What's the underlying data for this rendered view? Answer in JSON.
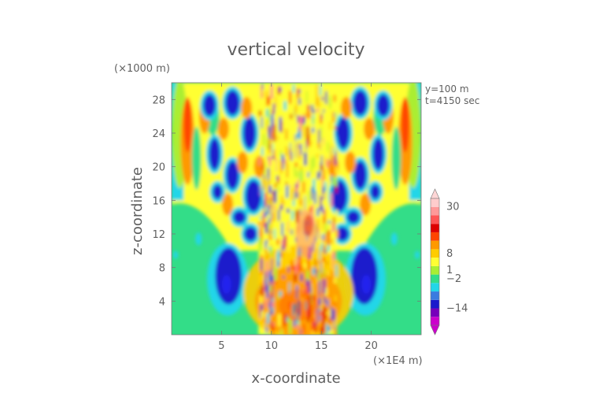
{
  "chart_data": {
    "type": "heatmap",
    "title": "vertical velocity",
    "xlabel": "x-coordinate",
    "ylabel": "z-coordinate",
    "x_unit": "(×1E4 m)",
    "y_unit": "(×1000 m)",
    "annotations": [
      "y=100 m",
      "t=4150 sec"
    ],
    "xlim": [
      0,
      25
    ],
    "ylim": [
      0,
      30
    ],
    "x_ticks": [
      5,
      10,
      15,
      20
    ],
    "y_ticks": [
      4,
      8,
      12,
      16,
      20,
      24,
      28
    ],
    "colorbar": {
      "levels": [
        -14,
        -2,
        1,
        8,
        30
      ],
      "labels": [
        "30",
        "8",
        "1",
        "−2",
        "−14"
      ],
      "range": [
        -20,
        40
      ],
      "colors": [
        "#cc00cc",
        "#7700bb",
        "#1a1acc",
        "#3a7be0",
        "#22d6e8",
        "#33dd88",
        "#aaee33",
        "#ffff33",
        "#ffcc00",
        "#ff9900",
        "#ff4400",
        "#dd0000",
        "#ff5555",
        "#ff9999",
        "#ffcccc"
      ]
    },
    "background_value": 0,
    "description_free": true
  }
}
